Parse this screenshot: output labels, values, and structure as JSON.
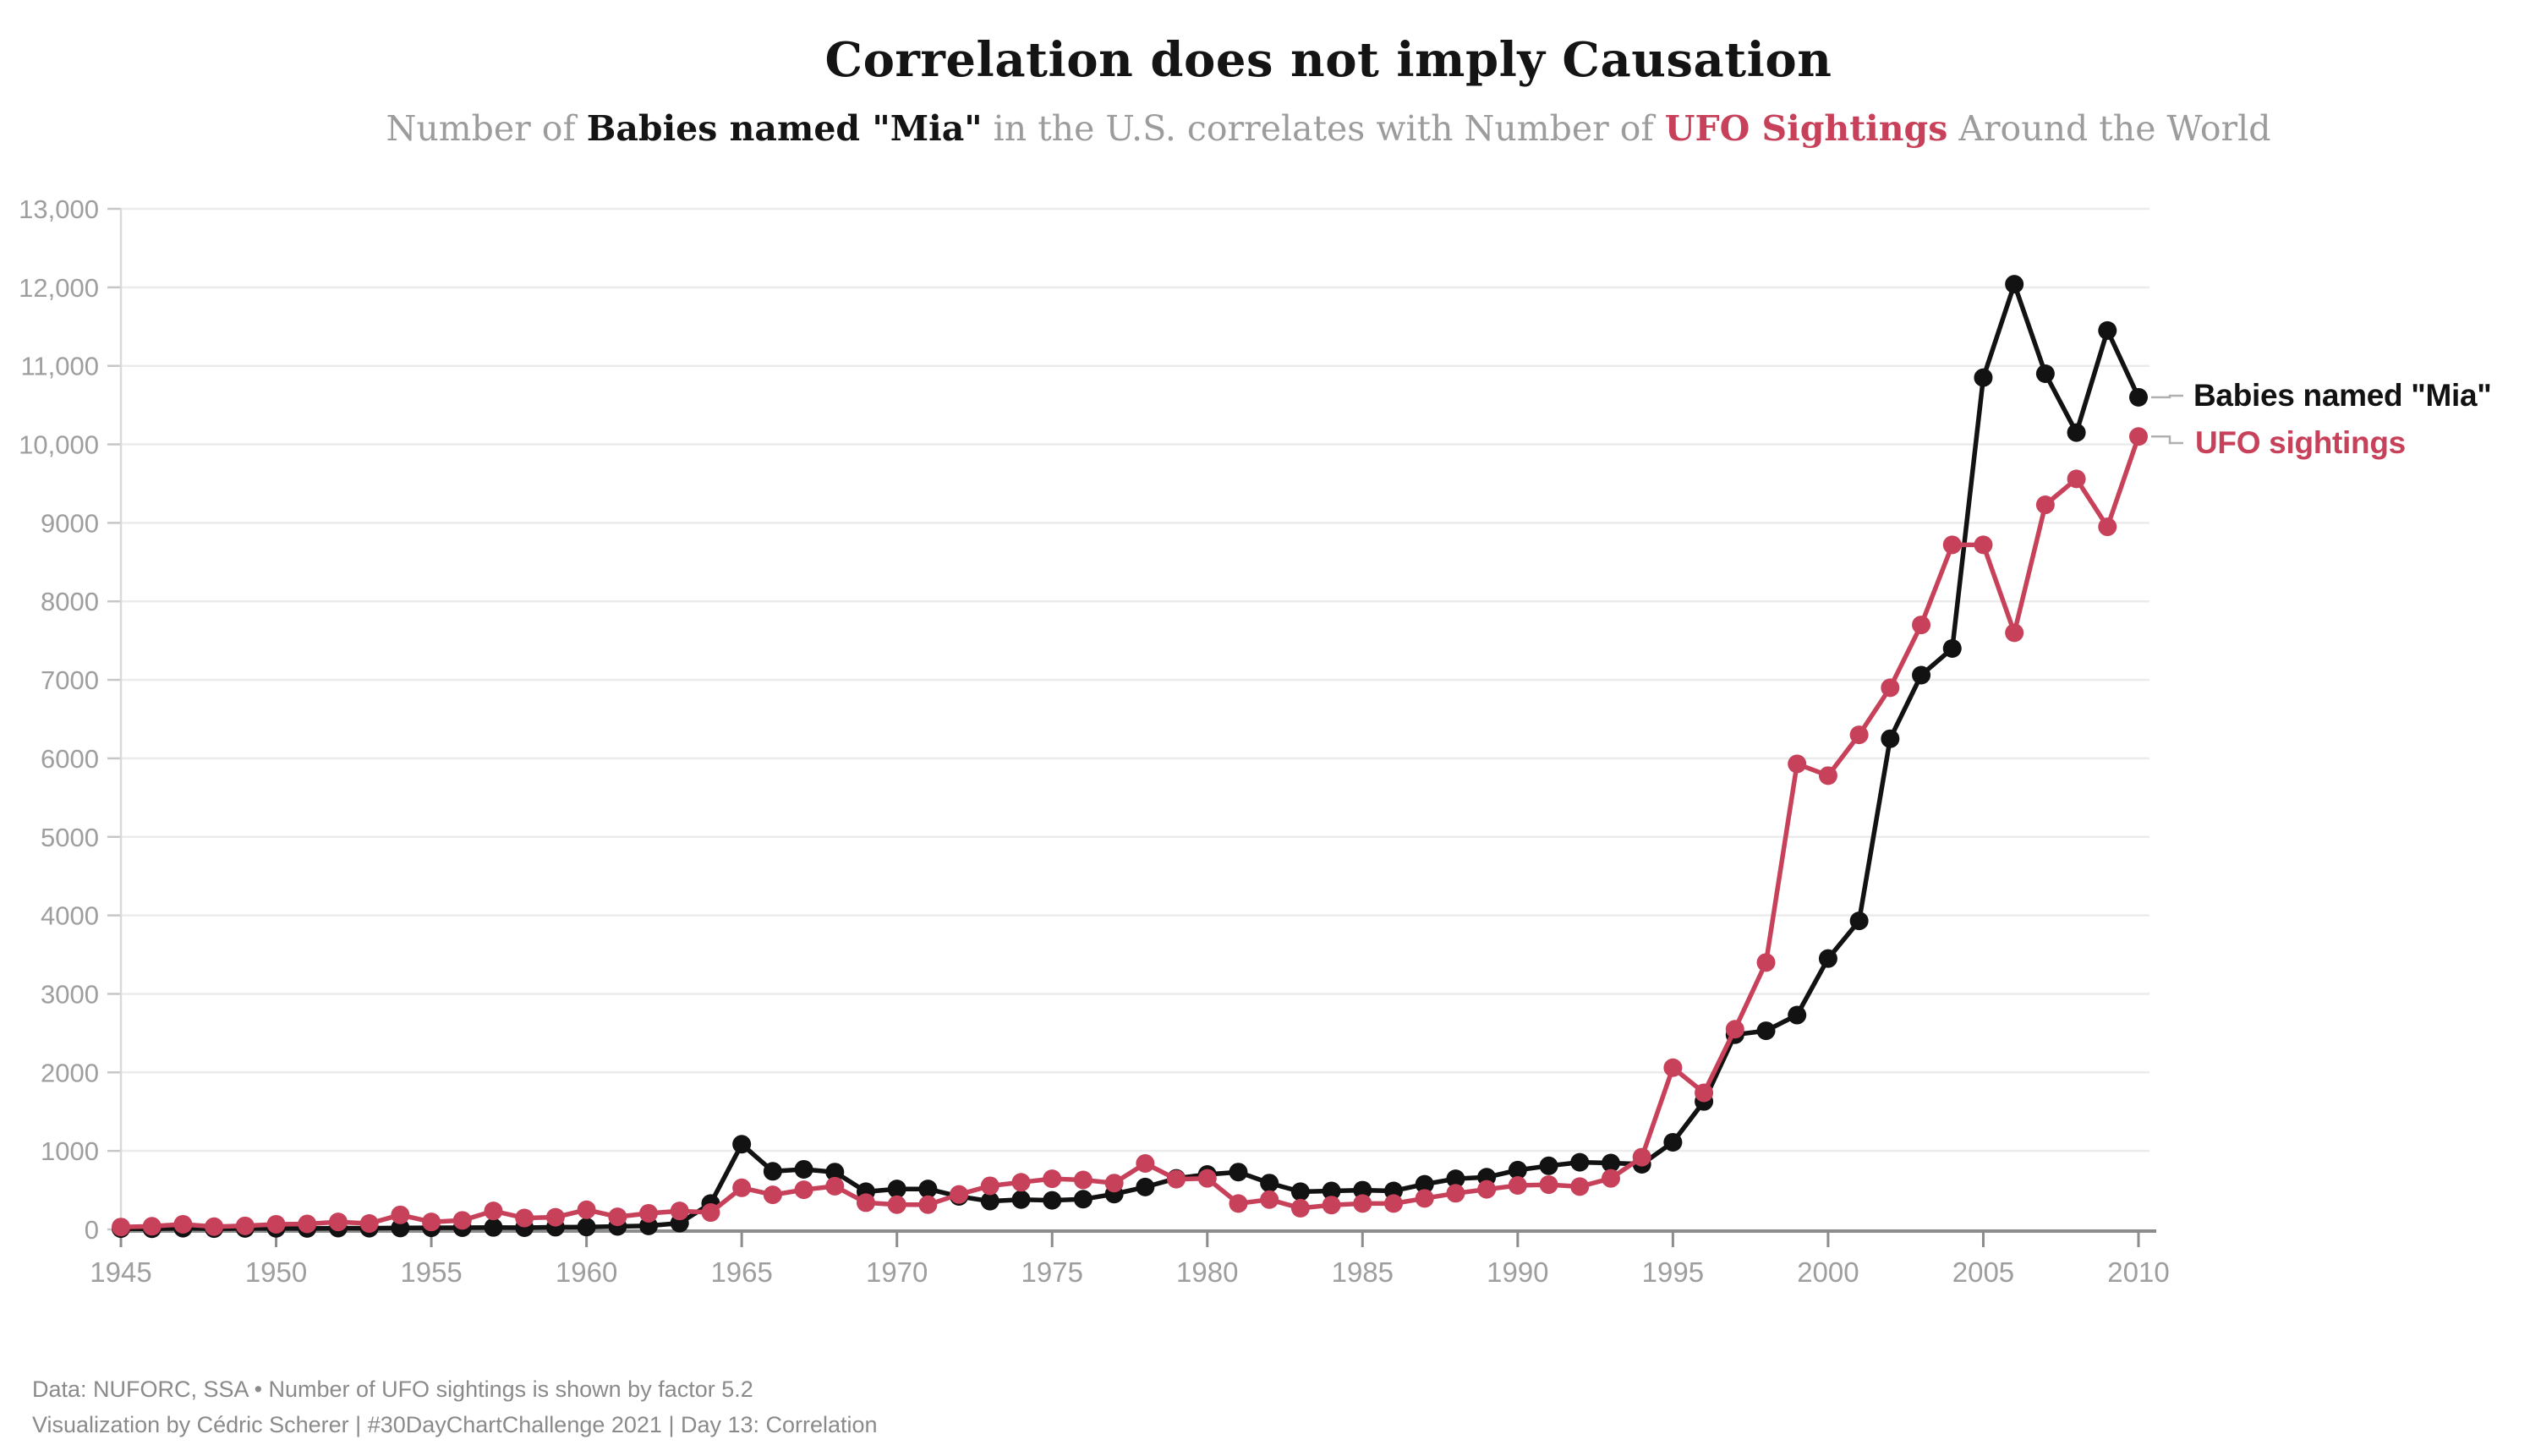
{
  "header": {
    "title": "Correlation does not imply Causation",
    "subtitle_prefix": "Number of ",
    "subtitle_bold_black": "Babies named \"Mia\"",
    "subtitle_mid": " in the U.S. correlates with Number of ",
    "subtitle_bold_red": "UFO Sightings",
    "subtitle_suffix": " Around the World"
  },
  "legend": {
    "series1_label": "Babies named \"Mia\"",
    "series2_label": "UFO sightings"
  },
  "footer": {
    "line1": "Data: NUFORC, SSA • Number of UFO sightings is shown by factor 5.2",
    "line2": "Visualization by Cédric Scherer | #30DayChartChallenge 2021 | Day 13: Correlation"
  },
  "colors": {
    "series_black": "#121212",
    "series_red": "#C8415A",
    "grid": "#ebebeb",
    "y_axis_line": "#d9d9d9",
    "x_axis_line": "#8c8c8c",
    "tick_text": "#9e9e9e",
    "connector": "#b0b0b0",
    "title_text": "#141414",
    "subtitle_text": "#9c9c9c",
    "footer_text": "#8a8a8a"
  },
  "chart_data": {
    "type": "line",
    "title": "Correlation does not imply Causation",
    "xlabel": "",
    "ylabel": "",
    "x_range": [
      1945,
      2010
    ],
    "ylim": [
      0,
      13000
    ],
    "grid": "horizontal",
    "legend_position": "right-of-last-point",
    "x_tick_years": [
      1945,
      1950,
      1955,
      1960,
      1965,
      1970,
      1975,
      1980,
      1985,
      1990,
      1995,
      2000,
      2005,
      2010
    ],
    "y_ticks": [
      {
        "value": 0,
        "label": "0"
      },
      {
        "value": 1000,
        "label": "1000"
      },
      {
        "value": 2000,
        "label": "2000"
      },
      {
        "value": 3000,
        "label": "3000"
      },
      {
        "value": 4000,
        "label": "4000"
      },
      {
        "value": 5000,
        "label": "5000"
      },
      {
        "value": 6000,
        "label": "6000"
      },
      {
        "value": 7000,
        "label": "7000"
      },
      {
        "value": 8000,
        "label": "8000"
      },
      {
        "value": 9000,
        "label": "9000"
      },
      {
        "value": 10000,
        "label": "10,000"
      },
      {
        "value": 11000,
        "label": "11,000"
      },
      {
        "value": 12000,
        "label": "12,000"
      },
      {
        "value": 13000,
        "label": "13,000"
      }
    ],
    "x": [
      1945,
      1946,
      1947,
      1948,
      1949,
      1950,
      1951,
      1952,
      1953,
      1954,
      1955,
      1956,
      1957,
      1958,
      1959,
      1960,
      1961,
      1962,
      1963,
      1964,
      1965,
      1966,
      1967,
      1968,
      1969,
      1970,
      1971,
      1972,
      1973,
      1974,
      1975,
      1976,
      1977,
      1978,
      1979,
      1980,
      1981,
      1982,
      1983,
      1984,
      1985,
      1986,
      1987,
      1988,
      1989,
      1990,
      1991,
      1992,
      1993,
      1994,
      1995,
      1996,
      1997,
      1998,
      1999,
      2000,
      2001,
      2002,
      2003,
      2004,
      2005,
      2006,
      2007,
      2008,
      2009,
      2010
    ],
    "series": [
      {
        "name": "Babies named \"Mia\"",
        "color": "#121212",
        "values": [
          10,
          8,
          15,
          10,
          12,
          14,
          12,
          16,
          15,
          18,
          20,
          22,
          25,
          22,
          28,
          30,
          38,
          45,
          80,
          330,
          1085,
          740,
          765,
          730,
          480,
          515,
          515,
          420,
          360,
          380,
          370,
          385,
          450,
          540,
          650,
          700,
          730,
          590,
          480,
          490,
          500,
          490,
          575,
          645,
          665,
          755,
          810,
          855,
          845,
          830,
          1110,
          1630,
          2480,
          2530,
          2730,
          3450,
          3930,
          6250,
          7060,
          7400,
          10850,
          12040,
          10900,
          10150,
          11450,
          10600
        ]
      },
      {
        "name": "UFO sightings",
        "color": "#C8415A",
        "values": [
          30,
          40,
          65,
          35,
          45,
          65,
          70,
          95,
          75,
          185,
          95,
          115,
          235,
          145,
          155,
          250,
          160,
          205,
          235,
          215,
          530,
          440,
          505,
          550,
          340,
          315,
          315,
          445,
          555,
          600,
          645,
          630,
          590,
          840,
          640,
          650,
          330,
          380,
          270,
          310,
          330,
          330,
          395,
          460,
          510,
          560,
          570,
          545,
          650,
          920,
          2060,
          1740,
          2550,
          3400,
          5930,
          5780,
          6300,
          6900,
          7700,
          8720,
          8720,
          7600,
          9230,
          9560,
          8950,
          10100
        ]
      }
    ]
  }
}
